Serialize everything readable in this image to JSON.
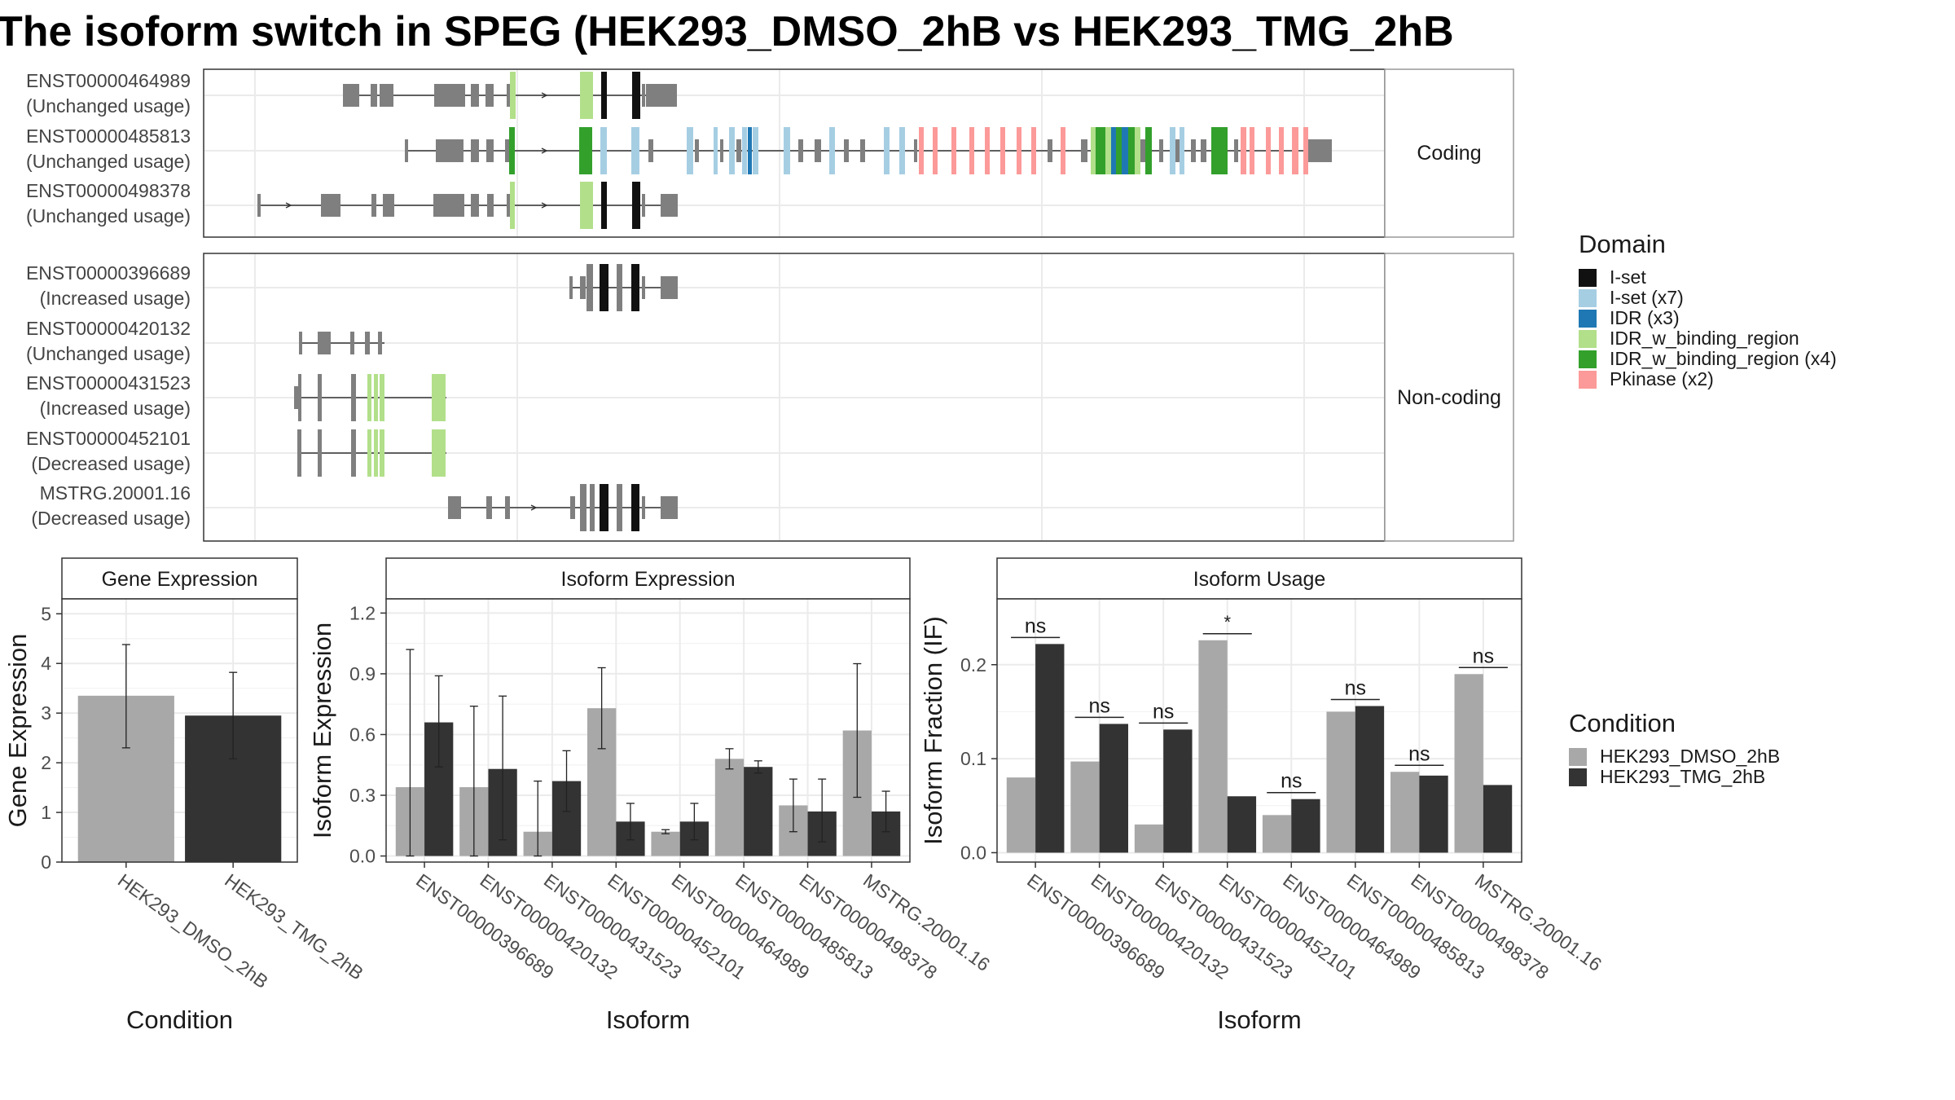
{
  "title": "The isoform switch in SPEG (HEK293_DMSO_2hB vs HEK293_TMG_2hB",
  "colors": {
    "dmso": "#a8a8a8",
    "tmg": "#333333",
    "intron": "#333333",
    "exon_gray": "#7f7f7f",
    "panel_border": "#333333",
    "strip_bg": "#ffffff",
    "grid": "#ebebeb"
  },
  "structure": {
    "facets": [
      {
        "label": "Coding",
        "transcripts": [
          {
            "id": "ENST00000464989",
            "usage": "(Unchanged usage)"
          },
          {
            "id": "ENST00000485813",
            "usage": "(Unchanged usage)"
          },
          {
            "id": "ENST00000498378",
            "usage": "(Unchanged usage)"
          }
        ]
      },
      {
        "label": "Non-coding",
        "transcripts": [
          {
            "id": "ENST00000396689",
            "usage": "(Increased usage)"
          },
          {
            "id": "ENST00000420132",
            "usage": "(Unchanged usage)"
          },
          {
            "id": "ENST00000431523",
            "usage": "(Increased usage)"
          },
          {
            "id": "ENST00000452101",
            "usage": "(Decreased usage)"
          },
          {
            "id": "MSTRG.20001.16",
            "usage": "(Decreased usage)"
          }
        ]
      }
    ]
  },
  "domain_legend": {
    "title": "Domain",
    "items": [
      {
        "label": "I-set",
        "color": "#111111"
      },
      {
        "label": "I-set (x7)",
        "color": "#a6cee3"
      },
      {
        "label": "IDR (x3)",
        "color": "#1f78b4"
      },
      {
        "label": "IDR_w_binding_region",
        "color": "#b2df8a"
      },
      {
        "label": "IDR_w_binding_region (x4)",
        "color": "#33a02c"
      },
      {
        "label": "Pkinase (x2)",
        "color": "#fb9a99"
      }
    ]
  },
  "condition_legend": {
    "title": "Condition",
    "items": [
      {
        "label": "HEK293_DMSO_2hB",
        "color": "#a8a8a8"
      },
      {
        "label": "HEK293_TMG_2hB",
        "color": "#333333"
      }
    ]
  },
  "chart_data": [
    {
      "type": "bar",
      "title": "Gene Expression",
      "xlabel": "Condition",
      "ylabel": "Gene Expression",
      "ylim": [
        0,
        5.3
      ],
      "yticks": [
        0,
        1,
        2,
        3,
        4,
        5
      ],
      "categories": [
        "HEK293_DMSO_2hB",
        "HEK293_TMG_2hB"
      ],
      "values": [
        3.35,
        2.95
      ],
      "err_low": [
        2.3,
        2.08
      ],
      "err_high": [
        4.38,
        3.82
      ],
      "colors": [
        "#a8a8a8",
        "#333333"
      ]
    },
    {
      "type": "bar",
      "title": "Isoform Expression",
      "xlabel": "Isoform",
      "ylabel": "Isoform Expression",
      "ylim": [
        -0.03,
        1.27
      ],
      "yticks": [
        0.0,
        0.3,
        0.6,
        0.9,
        1.2
      ],
      "yticklabels": [
        "0.0",
        "0.3",
        "0.6",
        "0.9",
        "1.2"
      ],
      "categories": [
        "ENST00000396689",
        "ENST00000420132",
        "ENST00000431523",
        "ENST00000452101",
        "ENST00000464989",
        "ENST00000485813",
        "ENST00000498378",
        "MSTRG.20001.16"
      ],
      "series": [
        {
          "name": "HEK293_DMSO_2hB",
          "values": [
            0.34,
            0.34,
            0.12,
            0.73,
            0.12,
            0.48,
            0.25,
            0.62
          ],
          "err_low": [
            0.0,
            0.0,
            0.0,
            0.53,
            0.11,
            0.43,
            0.12,
            0.29
          ],
          "err_high": [
            1.02,
            0.74,
            0.37,
            0.93,
            0.13,
            0.53,
            0.38,
            0.95
          ]
        },
        {
          "name": "HEK293_TMG_2hB",
          "values": [
            0.66,
            0.43,
            0.37,
            0.17,
            0.17,
            0.44,
            0.22,
            0.22
          ],
          "err_low": [
            0.44,
            0.08,
            0.22,
            0.08,
            0.08,
            0.41,
            0.07,
            0.12
          ],
          "err_high": [
            0.89,
            0.79,
            0.52,
            0.26,
            0.26,
            0.47,
            0.38,
            0.32
          ]
        }
      ]
    },
    {
      "type": "bar",
      "title": "Isoform Usage",
      "xlabel": "Isoform",
      "ylabel": "Isoform Fraction (IF)",
      "ylim": [
        -0.01,
        0.27
      ],
      "yticks": [
        0.0,
        0.1,
        0.2
      ],
      "yticklabels": [
        "0.0",
        "0.1",
        "0.2"
      ],
      "categories": [
        "ENST00000396689",
        "ENST00000420132",
        "ENST00000431523",
        "ENST00000452101",
        "ENST00000464989",
        "ENST00000485813",
        "ENST00000498378",
        "MSTRG.20001.16"
      ],
      "series": [
        {
          "name": "HEK293_DMSO_2hB",
          "values": [
            0.08,
            0.097,
            0.03,
            0.226,
            0.04,
            0.15,
            0.086,
            0.19
          ]
        },
        {
          "name": "HEK293_TMG_2hB",
          "values": [
            0.222,
            0.137,
            0.131,
            0.06,
            0.057,
            0.156,
            0.082,
            0.072
          ]
        }
      ],
      "significance": [
        "ns",
        "ns",
        "ns",
        "*",
        "ns",
        "ns",
        "ns",
        "ns"
      ]
    }
  ]
}
